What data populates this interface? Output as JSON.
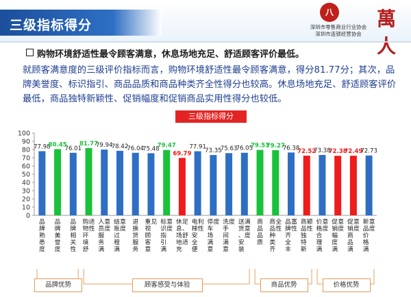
{
  "header": {
    "title": "三级指标得分",
    "logo_seal": "八",
    "logo_line1": "深圳市零售商业行业协会",
    "logo_line2": "深圳市连锁经营协会",
    "logo_wan": "萬人"
  },
  "lead": "购物环境舒适性最令顾客满意，休息场地充足、舒适顾客评价最低。",
  "paragraph": "就顾客满意度的三级评价指标而言，购物环境舒适性最令顾客满意，得分81.77分；其次，品牌美誉度、标识指引、商品品质和商品种类齐全性得分也较高。休息场地充足、舒适顾客评价最低，商品独特新颖性、促销幅度和促销商品实用性得分也较低。",
  "chart_data": {
    "type": "bar",
    "title": "三级指标得分",
    "ylim": [
      0,
      100
    ],
    "yticks": [
      0,
      10,
      20,
      30,
      40,
      50,
      60,
      70,
      80,
      90,
      100
    ],
    "grid": false,
    "colors": {
      "normal": "#2e6fc4",
      "high": "#19c23a",
      "low": "#ee1c1c"
    },
    "categories": [
      "品牌熟悉度",
      "品牌美誉度",
      "品牌相关性",
      "购物环境舒适性",
      "人员服务满意度",
      "结账过程满意度",
      "退换货服务",
      "重视顾客意见",
      "标识指引满意度",
      "休息场地充足、舒适",
      "电梯安全便利性",
      "停车场满意度",
      "洗手间满意度",
      "送货、安装满意度",
      "商品品质",
      "商品种类齐全性",
      "品牌齐全丰富性",
      "商品独特新颖性",
      "价格合理满意度",
      "促销幅度满意度",
      "促销商品满意度",
      "新品价格满意度"
    ],
    "values": [
      77.98,
      80.45,
      76.01,
      81.77,
      79.94,
      78.42,
      76.04,
      75.48,
      79.47,
      69.79,
      77.91,
      73.35,
      75.63,
      76.05,
      79.53,
      79.27,
      76.38,
      72.52,
      73.38,
      72.38,
      72.49,
      72.73
    ],
    "labels": [
      "77.98",
      "80.45",
      "76.01",
      "81.77",
      "79.94",
      "78.42",
      "76.04",
      "75.48",
      "79.47",
      "69.79",
      "77.91",
      "73.35",
      "75.63",
      "76.05",
      "79.53",
      "79.27",
      "76.38",
      "72.52",
      "73.38",
      "72.38",
      "72.49",
      "72.73"
    ],
    "highlight": [
      "normal",
      "high",
      "normal",
      "high",
      "normal",
      "normal",
      "normal",
      "normal",
      "high",
      "low",
      "normal",
      "normal",
      "normal",
      "normal",
      "high",
      "high",
      "normal",
      "low",
      "normal",
      "low",
      "low",
      "normal"
    ],
    "groups": [
      {
        "name": "品牌优势",
        "from": 0,
        "to": 2
      },
      {
        "name": "顾客感受与体验",
        "from": 3,
        "to": 13
      },
      {
        "name": "商品优势",
        "from": 14,
        "to": 17
      },
      {
        "name": "价格优势",
        "from": 18,
        "to": 21
      }
    ]
  }
}
